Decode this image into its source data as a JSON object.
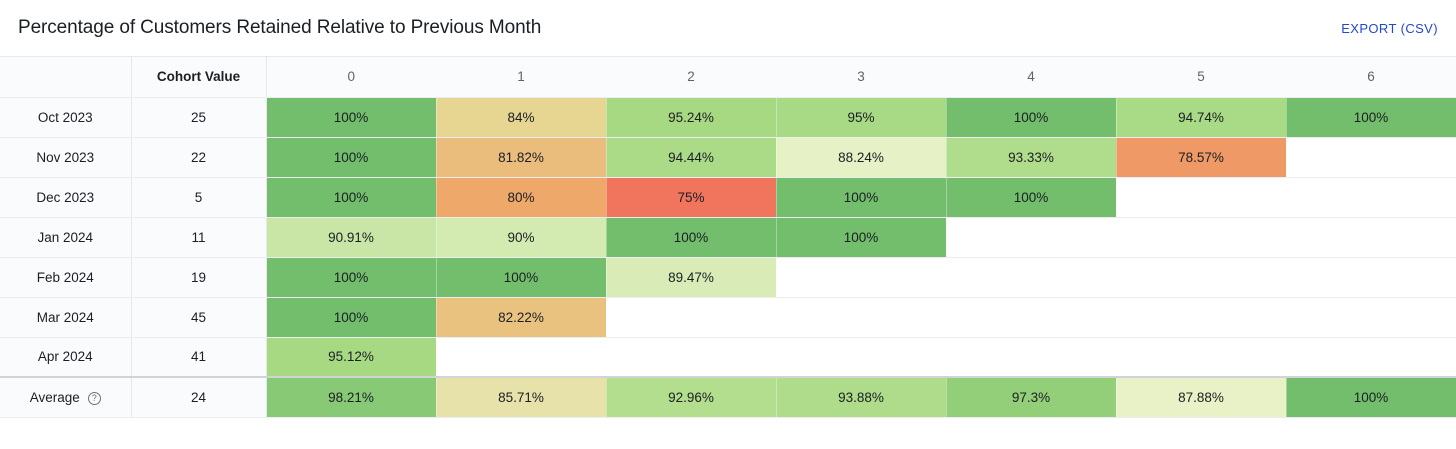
{
  "header": {
    "title": "Percentage of Customers Retained Relative to Previous Month",
    "export_label": "EXPORT (CSV)"
  },
  "chart_data": {
    "type": "heatmap",
    "cohort_header": "Cohort Value",
    "periods": [
      "0",
      "1",
      "2",
      "3",
      "4",
      "5",
      "6"
    ],
    "rows": [
      {
        "label": "Oct 2023",
        "cohort": "25",
        "values": [
          100,
          84,
          95.24,
          95,
          100,
          94.74,
          100
        ]
      },
      {
        "label": "Nov 2023",
        "cohort": "22",
        "values": [
          100,
          81.82,
          94.44,
          88.24,
          93.33,
          78.57
        ]
      },
      {
        "label": "Dec 2023",
        "cohort": "5",
        "values": [
          100,
          80,
          75,
          100,
          100
        ]
      },
      {
        "label": "Jan 2024",
        "cohort": "11",
        "values": [
          90.91,
          90,
          100,
          100
        ]
      },
      {
        "label": "Feb 2024",
        "cohort": "19",
        "values": [
          100,
          100,
          89.47
        ]
      },
      {
        "label": "Mar 2024",
        "cohort": "45",
        "values": [
          100,
          82.22
        ]
      },
      {
        "label": "Apr 2024",
        "cohort": "41",
        "values": [
          95.12
        ]
      }
    ],
    "average": {
      "label": "Average",
      "cohort": "24",
      "values": [
        98.21,
        85.71,
        92.96,
        93.88,
        97.3,
        87.88,
        100
      ]
    },
    "color_scale": {
      "low": "#f0755c",
      "mid": "#e9e3a0",
      "high": "#72be6d"
    }
  }
}
